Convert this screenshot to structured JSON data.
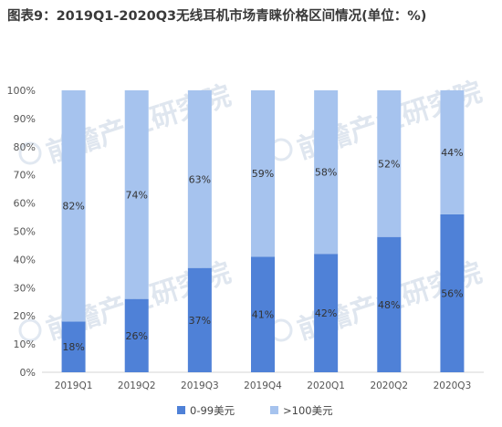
{
  "title": "图表9：2019Q1-2020Q3无线耳机市场青睐价格区间情况(单位：%)",
  "watermark": "前瞻产业研究院",
  "chart_data": {
    "type": "bar",
    "stacked": true,
    "categories": [
      "2019Q1",
      "2019Q2",
      "2019Q3",
      "2019Q4",
      "2020Q1",
      "2020Q2",
      "2020Q3"
    ],
    "series": [
      {
        "name": "0-99美元",
        "values": [
          18,
          26,
          37,
          41,
          42,
          48,
          56
        ],
        "labels": [
          "18%",
          "26%",
          "37%",
          "41%",
          "42%",
          "48%",
          "56%"
        ],
        "color": "#4f81d7"
      },
      {
        "name": ">100美元",
        "values": [
          82,
          74,
          63,
          59,
          58,
          52,
          44
        ],
        "labels": [
          "82%",
          "74%",
          "63%",
          "59%",
          "58%",
          "52%",
          "44%"
        ],
        "color": "#a6c3ee"
      }
    ],
    "ylim": [
      0,
      100
    ],
    "yticks": [
      "0%",
      "10%",
      "20%",
      "30%",
      "40%",
      "50%",
      "60%",
      "70%",
      "80%",
      "90%",
      "100%"
    ],
    "grid": false,
    "legend": "bottom"
  }
}
